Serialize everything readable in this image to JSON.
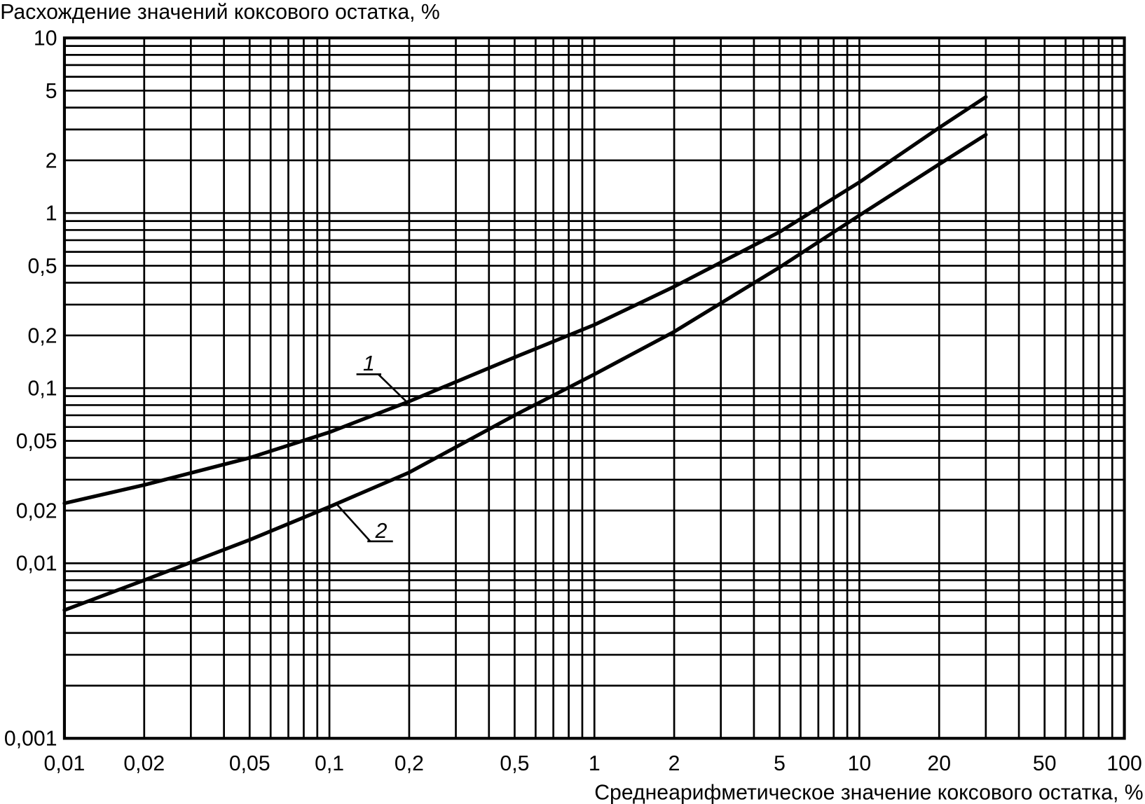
{
  "chart_data": {
    "type": "line",
    "title": "Расхождение значений коксового остатка, %",
    "x_label": "Среднеарифметическое значение коксового остатка, %",
    "x_log": true,
    "y_log": true,
    "grid": true,
    "color": "#000000",
    "xlim": [
      0.01,
      100
    ],
    "ylim": [
      0.001,
      10
    ],
    "xticks": [
      {
        "value": 0.01,
        "label": "0,01"
      },
      {
        "value": 0.02,
        "label": "0,02"
      },
      {
        "value": 0.05,
        "label": "0,05"
      },
      {
        "value": 0.1,
        "label": "0,1"
      },
      {
        "value": 0.2,
        "label": "0,2"
      },
      {
        "value": 0.5,
        "label": "0,5"
      },
      1,
      2,
      5,
      10,
      20,
      50,
      100
    ],
    "yticks": [
      {
        "value": 0.001,
        "label": "0,001"
      },
      {
        "value": 0.01,
        "label": "0,01"
      },
      {
        "value": 0.02,
        "label": "0,02"
      },
      {
        "value": 0.05,
        "label": "0,05"
      },
      {
        "value": 0.1,
        "label": "0,1"
      },
      {
        "value": 0.2,
        "label": "0,2"
      },
      {
        "value": 0.5,
        "label": "0,5"
      },
      1,
      2,
      5,
      10
    ],
    "xgrid": [
      0.01,
      0.02,
      0.03,
      0.04,
      0.05,
      0.06,
      0.07,
      0.08,
      0.09,
      0.1,
      0.2,
      0.3,
      0.4,
      0.5,
      0.6,
      0.7,
      0.8,
      0.9,
      1,
      2,
      3,
      4,
      5,
      6,
      7,
      8,
      9,
      10,
      20,
      30,
      40,
      50,
      60,
      70,
      80,
      90,
      100
    ],
    "ygrid": [
      0.001,
      0.002,
      0.003,
      0.004,
      0.005,
      0.006,
      0.007,
      0.008,
      0.009,
      0.01,
      0.02,
      0.03,
      0.04,
      0.05,
      0.06,
      0.07,
      0.08,
      0.09,
      0.1,
      0.2,
      0.3,
      0.4,
      0.5,
      0.6,
      0.7,
      0.8,
      0.9,
      1,
      2,
      3,
      4,
      5,
      6,
      7,
      8,
      9,
      10
    ],
    "x": [
      0.01,
      0.02,
      0.05,
      0.1,
      0.2,
      0.5,
      1,
      2,
      5,
      10,
      20,
      30
    ],
    "series": [
      {
        "name": "1",
        "color": "#000000",
        "values": [
          0.022,
          0.028,
          0.04,
          0.056,
          0.084,
          0.15,
          0.23,
          0.38,
          0.78,
          1.5,
          3.07,
          4.6
        ]
      },
      {
        "name": "2",
        "color": "#000000",
        "values": [
          0.0054,
          0.008,
          0.0136,
          0.021,
          0.033,
          0.07,
          0.12,
          0.21,
          0.49,
          0.97,
          1.9,
          2.8
        ]
      }
    ]
  }
}
